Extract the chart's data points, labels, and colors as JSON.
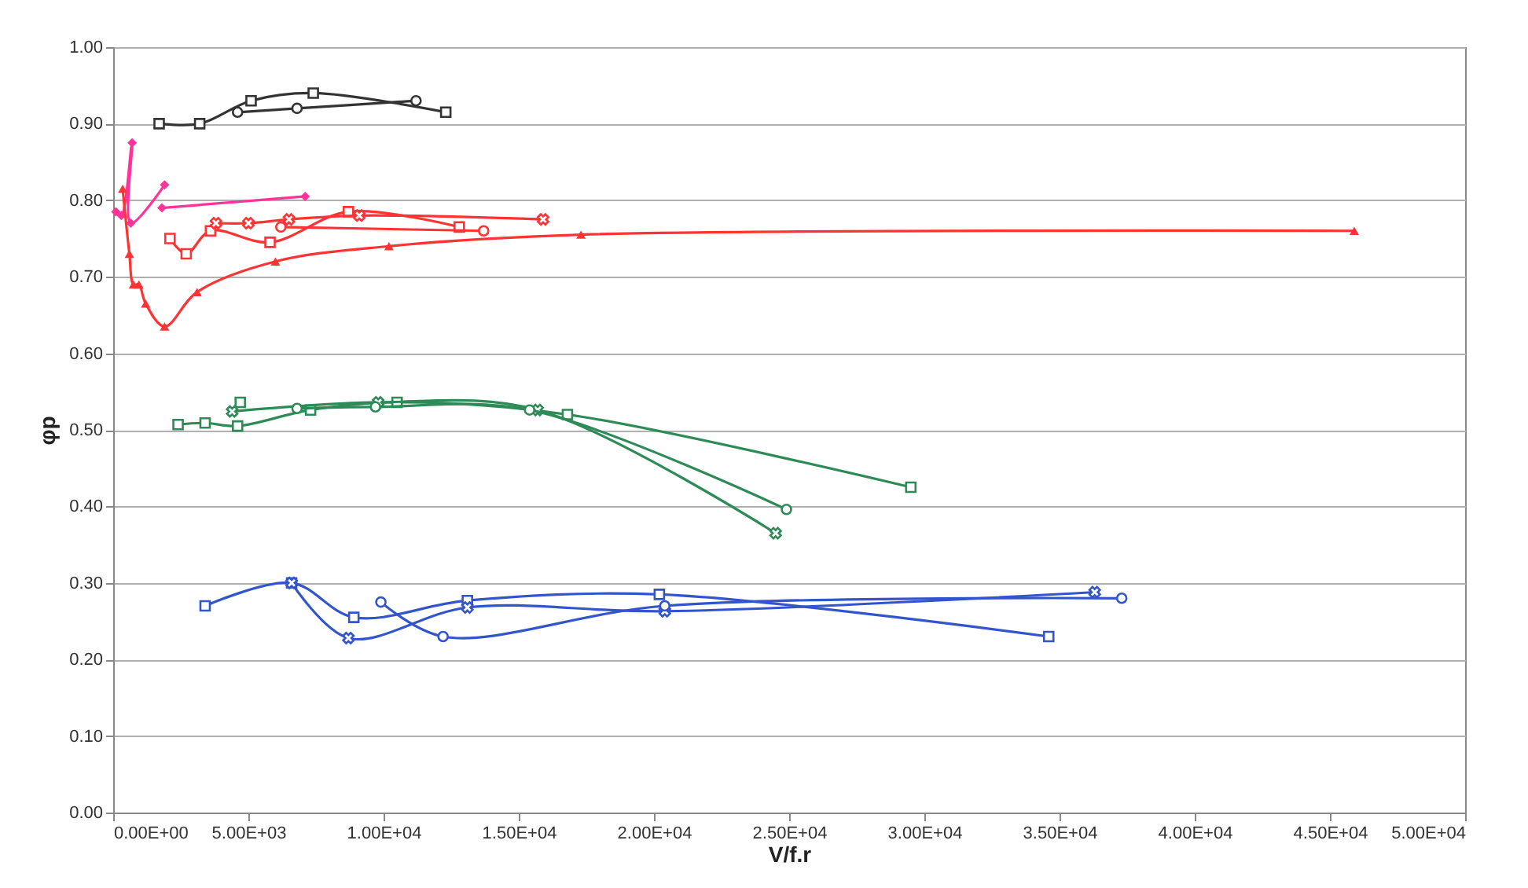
{
  "chart_data": {
    "type": "line",
    "xlabel": "V/f.r",
    "ylabel": "φp",
    "xlim": [
      0,
      50000
    ],
    "ylim": [
      0,
      1
    ],
    "xticks": [
      {
        "value": 0,
        "label": "0.00E+00"
      },
      {
        "value": 5000,
        "label": "5.00E+03"
      },
      {
        "value": 10000,
        "label": "1.00E+04"
      },
      {
        "value": 15000,
        "label": "1.50E+04"
      },
      {
        "value": 20000,
        "label": "2.00E+04"
      },
      {
        "value": 25000,
        "label": "2.50E+04"
      },
      {
        "value": 30000,
        "label": "3.00E+04"
      },
      {
        "value": 35000,
        "label": "3.50E+04"
      },
      {
        "value": 40000,
        "label": "4.00E+04"
      },
      {
        "value": 45000,
        "label": "4.50E+04"
      },
      {
        "value": 50000,
        "label": "5.00E+04"
      }
    ],
    "yticks": [
      {
        "value": 0,
        "label": "0.00"
      },
      {
        "value": 0.1,
        "label": "0.10"
      },
      {
        "value": 0.2,
        "label": "0.20"
      },
      {
        "value": 0.3,
        "label": "0.30"
      },
      {
        "value": 0.4,
        "label": "0.40"
      },
      {
        "value": 0.5,
        "label": "0.50"
      },
      {
        "value": 0.6,
        "label": "0.60"
      },
      {
        "value": 0.7,
        "label": "0.70"
      },
      {
        "value": 0.8,
        "label": "0.80"
      },
      {
        "value": 0.9,
        "label": "0.90"
      },
      {
        "value": 1,
        "label": "1.00"
      }
    ],
    "grid": "y",
    "line_style": "solid",
    "series": [
      {
        "color": "#333333",
        "marker": "square",
        "x": [
          1700,
          3200,
          5100,
          7400,
          12300
        ],
        "values": [
          0.9,
          0.9,
          0.93,
          0.94,
          0.915
        ]
      },
      {
        "color": "#333333",
        "marker": "circle",
        "x": [
          4600,
          6800,
          11200
        ],
        "values": [
          0.915,
          0.92,
          0.93
        ]
      },
      {
        "color": "#ff3399",
        "marker": "diamond",
        "x": [
          100,
          300,
          700,
          650,
          1900
        ],
        "values": [
          0.785,
          0.78,
          0.875,
          0.77,
          0.82
        ]
      },
      {
        "color": "#ff3399",
        "marker": "diamond",
        "x": [
          1800,
          7100
        ],
        "values": [
          0.79,
          0.805
        ]
      },
      {
        "color": "#ff3333",
        "marker": "triangle",
        "x": [
          350,
          600,
          750,
          950,
          1200,
          1900,
          3100,
          6000,
          10200,
          17300,
          45900
        ],
        "values": [
          0.815,
          0.73,
          0.69,
          0.69,
          0.665,
          0.635,
          0.68,
          0.72,
          0.74,
          0.755,
          0.76
        ]
      },
      {
        "color": "#ff3333",
        "marker": "square",
        "x": [
          2100,
          2700,
          3600,
          5800,
          8700,
          12800
        ],
        "values": [
          0.75,
          0.73,
          0.76,
          0.745,
          0.785,
          0.765
        ]
      },
      {
        "color": "#ff3333",
        "marker": "cross",
        "x": [
          3800,
          5000,
          6500,
          9100,
          15900
        ],
        "values": [
          0.77,
          0.77,
          0.775,
          0.78,
          0.775
        ]
      },
      {
        "color": "#ff3333",
        "marker": "circle",
        "x": [
          6200,
          13700
        ],
        "values": [
          0.765,
          0.76
        ]
      },
      {
        "color": "#2e8b57",
        "marker": "square",
        "x": [
          2400,
          3400,
          4600,
          7300,
          10500,
          16800,
          29500
        ],
        "values": [
          0.507,
          0.509,
          0.505,
          0.526,
          0.536,
          0.52,
          0.425
        ]
      },
      {
        "color": "#2e8b57",
        "marker": "square",
        "x": [
          4700
        ],
        "values": [
          0.536
        ]
      },
      {
        "color": "#2e8b57",
        "marker": "cross",
        "x": [
          4400,
          9800,
          15700,
          24500
        ],
        "values": [
          0.524,
          0.536,
          0.526,
          0.365
        ]
      },
      {
        "color": "#2e8b57",
        "marker": "circle",
        "x": [
          6800,
          9700,
          15400,
          24900
        ],
        "values": [
          0.528,
          0.53,
          0.526,
          0.396
        ]
      },
      {
        "color": "#3355cc",
        "marker": "square",
        "x": [
          3400,
          6600,
          8900,
          13100,
          20200,
          34600
        ],
        "values": [
          0.27,
          0.3,
          0.255,
          0.277,
          0.285,
          0.23
        ]
      },
      {
        "color": "#3355cc",
        "marker": "cross",
        "x": [
          6600,
          8700,
          13100,
          20400,
          36300
        ],
        "values": [
          0.3,
          0.228,
          0.268,
          0.263,
          0.288
        ]
      },
      {
        "color": "#3355cc",
        "marker": "circle",
        "x": [
          9900,
          12200,
          20400,
          37300
        ],
        "values": [
          0.275,
          0.23,
          0.27,
          0.28
        ]
      }
    ]
  }
}
